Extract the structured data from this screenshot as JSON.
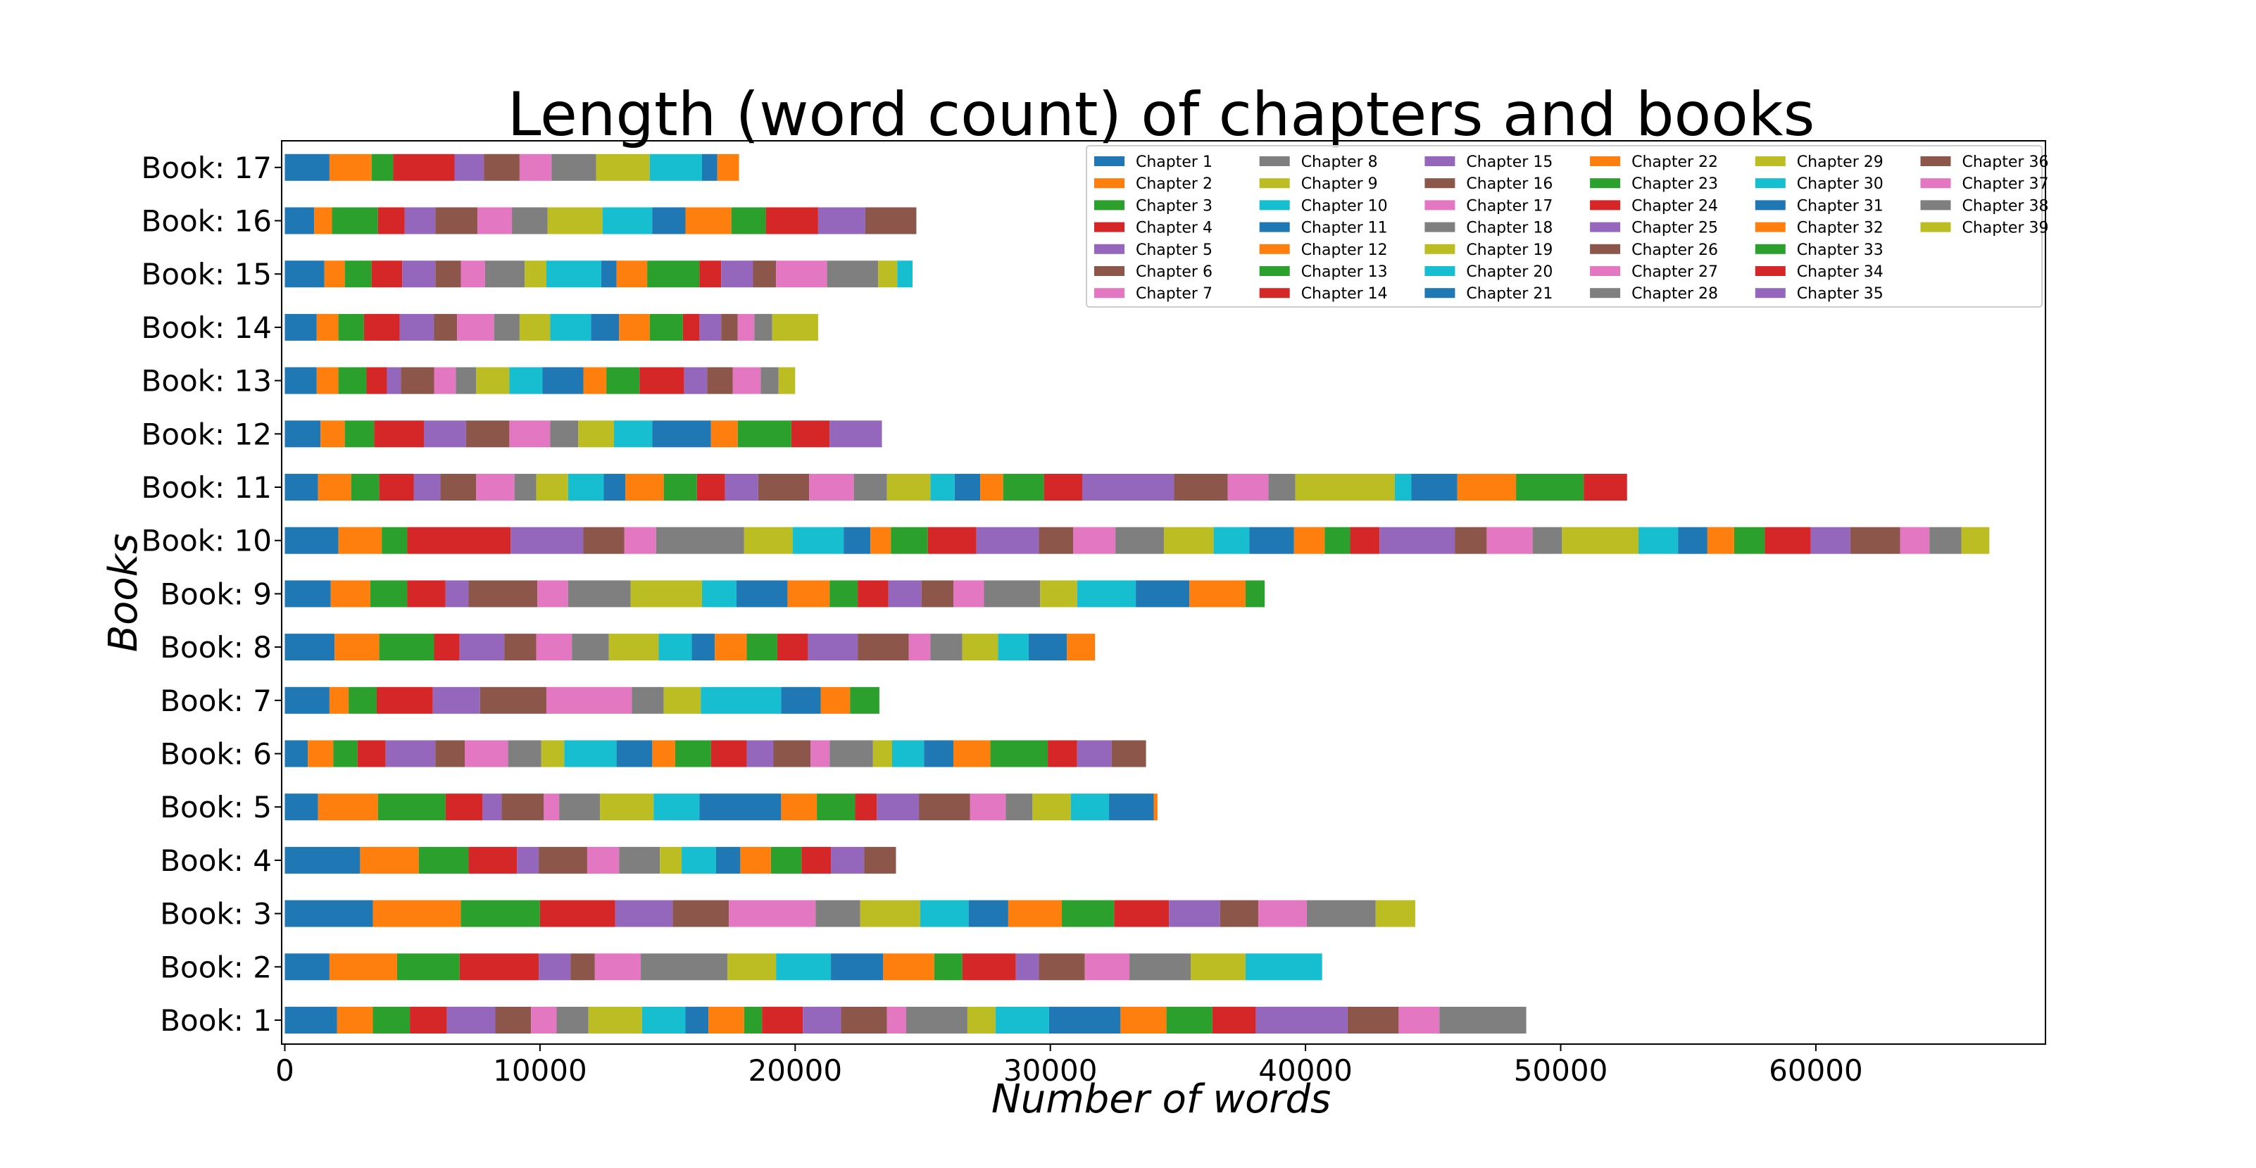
{
  "chart_data": {
    "type": "bar",
    "orientation": "horizontal",
    "stacked": true,
    "title": "Length (word count) of chapters and books",
    "xlabel": "Number of words",
    "ylabel": "Books",
    "xlim": [
      0,
      69000
    ],
    "xticks": [
      0,
      10000,
      20000,
      30000,
      40000,
      50000,
      60000
    ],
    "xtick_labels": [
      "0",
      "10000",
      "20000",
      "30000",
      "40000",
      "50000",
      "60000"
    ],
    "grid": false,
    "legend_position": "top-right",
    "legend_columns": 6,
    "palette": [
      "#1f77b4",
      "#ff7f0e",
      "#2ca02c",
      "#d62728",
      "#9467bd",
      "#8c564b",
      "#e377c2",
      "#7f7f7f",
      "#bcbd22",
      "#17becf"
    ],
    "series_names": [
      "Chapter 1",
      "Chapter 2",
      "Chapter 3",
      "Chapter 4",
      "Chapter 5",
      "Chapter 6",
      "Chapter 7",
      "Chapter 8",
      "Chapter 9",
      "Chapter 10",
      "Chapter 11",
      "Chapter 12",
      "Chapter 13",
      "Chapter 14",
      "Chapter 15",
      "Chapter 16",
      "Chapter 17",
      "Chapter 18",
      "Chapter 19",
      "Chapter 20",
      "Chapter 21",
      "Chapter 22",
      "Chapter 23",
      "Chapter 24",
      "Chapter 25",
      "Chapter 26",
      "Chapter 27",
      "Chapter 28",
      "Chapter 29",
      "Chapter 30",
      "Chapter 31",
      "Chapter 32",
      "Chapter 33",
      "Chapter 34",
      "Chapter 35",
      "Chapter 36",
      "Chapter 37",
      "Chapter 38",
      "Chapter 39"
    ],
    "categories": [
      "Book: 1",
      "Book: 2",
      "Book: 3",
      "Book: 4",
      "Book: 5",
      "Book: 6",
      "Book: 7",
      "Book: 8",
      "Book: 9",
      "Book: 10",
      "Book: 11",
      "Book: 12",
      "Book: 13",
      "Book: 14",
      "Book: 15",
      "Book: 16",
      "Book: 17"
    ],
    "books": [
      {
        "name": "Book: 1",
        "chapters": [
          2050,
          1400,
          1450,
          1450,
          1900,
          1400,
          1000,
          1250,
          2100,
          1700,
          900,
          1400,
          700,
          1600,
          1500,
          1800,
          750,
          2400,
          1100,
          2100,
          2800,
          1800,
          1800,
          1700,
          3600,
          2000,
          1600,
          3400
        ]
      },
      {
        "name": "Book: 2",
        "chapters": [
          1750,
          2650,
          2450,
          3100,
          1250,
          950,
          1800,
          3400,
          1900,
          2150,
          2050,
          2000,
          1100,
          2100,
          900,
          1800,
          1750,
          2400,
          2150,
          3000
        ]
      },
      {
        "name": "Book: 3",
        "chapters": [
          3450,
          3450,
          3100,
          2950,
          2250,
          2200,
          3400,
          1750,
          2350,
          1900,
          1550,
          2100,
          2050,
          2150,
          2000,
          1500,
          1900,
          2700,
          1550
        ]
      },
      {
        "name": "Book: 4",
        "chapters": [
          2950,
          2300,
          1950,
          1900,
          850,
          1900,
          1250,
          1600,
          850,
          1350,
          950,
          1200,
          1200,
          1150,
          1300,
          1250
        ]
      },
      {
        "name": "Book: 5",
        "chapters": [
          1300,
          2350,
          2650,
          1450,
          750,
          1650,
          600,
          1600,
          2100,
          1800,
          3200,
          1400,
          1500,
          850,
          1650,
          2000,
          1400,
          1050,
          1500,
          1500,
          1750,
          150
        ]
      },
      {
        "name": "Book: 6",
        "chapters": [
          900,
          1000,
          950,
          1100,
          1950,
          1150,
          1700,
          1300,
          900,
          2050,
          1400,
          900,
          1400,
          1400,
          1050,
          1450,
          750,
          1700,
          750,
          1250,
          1150,
          1450,
          2250,
          1150,
          1350,
          1350
        ]
      },
      {
        "name": "Book: 7",
        "chapters": [
          1750,
          750,
          1100,
          2200,
          1850,
          2600,
          3350,
          1250,
          1450,
          3150,
          1550,
          1150,
          1150
        ]
      },
      {
        "name": "Book: 8",
        "chapters": [
          1950,
          1750,
          2150,
          1000,
          1750,
          1250,
          1400,
          1450,
          1950,
          1300,
          900,
          1250,
          1200,
          1200,
          1950,
          2000,
          850,
          1250,
          1400,
          1200,
          1500,
          1100
        ]
      },
      {
        "name": "Book: 9",
        "chapters": [
          1800,
          1550,
          1450,
          1500,
          900,
          2700,
          1200,
          2450,
          2800,
          1350,
          2000,
          1650,
          1100,
          1200,
          1300,
          1250,
          1200,
          2200,
          1450,
          2300,
          2100,
          2200,
          750
        ]
      },
      {
        "name": "Book: 10",
        "chapters": [
          2100,
          1700,
          1000,
          4050,
          2850,
          1600,
          1250,
          3450,
          1900,
          2000,
          1050,
          800,
          1450,
          1900,
          2450,
          1350,
          1650,
          1900,
          1950,
          1400,
          1750,
          1200,
          1000,
          1150,
          2950,
          1250,
          1800,
          1150,
          3000,
          1550,
          1150,
          1050,
          1200,
          1800,
          1550,
          1950,
          1150,
          1250,
          1100
        ]
      },
      {
        "name": "Book: 11",
        "chapters": [
          1300,
          1300,
          1100,
          1350,
          1050,
          1400,
          1500,
          850,
          1250,
          1400,
          850,
          1500,
          1300,
          1100,
          1300,
          2000,
          1750,
          1300,
          1700,
          950,
          1000,
          900,
          1600,
          1500,
          3600,
          2100,
          1600,
          1050,
          3900,
          650,
          1800,
          2300,
          2650,
          1700
        ]
      },
      {
        "name": "Book: 12",
        "chapters": [
          1400,
          950,
          1150,
          1950,
          1650,
          1700,
          1600,
          1100,
          1400,
          1500,
          2300,
          1050,
          2100,
          1500,
          2050
        ]
      },
      {
        "name": "Book: 13",
        "chapters": [
          1250,
          850,
          1100,
          800,
          550,
          1300,
          850,
          800,
          1300,
          1300,
          1600,
          900,
          1300,
          1750,
          900,
          1000,
          1100,
          700,
          650
        ]
      },
      {
        "name": "Book: 14",
        "chapters": [
          1250,
          850,
          1000,
          1400,
          1350,
          900,
          1450,
          1000,
          1200,
          1600,
          1100,
          1200,
          1300,
          650,
          850,
          650,
          650,
          700,
          1800
        ]
      },
      {
        "name": "Book: 15",
        "chapters": [
          1550,
          800,
          1050,
          1200,
          1300,
          1000,
          950,
          1550,
          850,
          2150,
          600,
          1200,
          2050,
          850,
          1250,
          900,
          2000,
          2000,
          750,
          600
        ]
      },
      {
        "name": "Book: 16",
        "chapters": [
          1150,
          700,
          1800,
          1050,
          1200,
          1650,
          1350,
          1400,
          2150,
          1950,
          1300,
          1800,
          1350,
          2050,
          1850,
          2000
        ]
      },
      {
        "name": "Book: 17",
        "chapters": [
          1750,
          1650,
          850,
          2400,
          1150,
          1400,
          1250,
          1750,
          2100,
          2050,
          600,
          850
        ]
      }
    ]
  }
}
